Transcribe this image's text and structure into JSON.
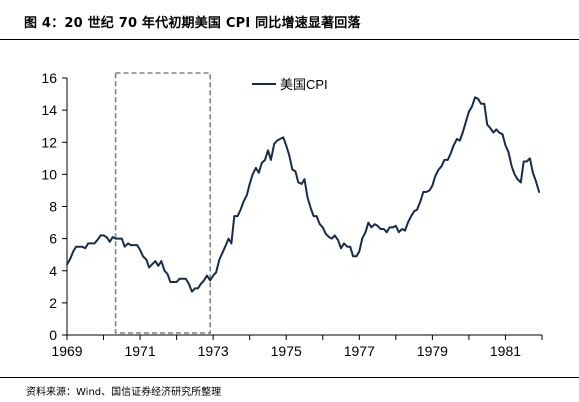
{
  "figure": {
    "title": "图 4：20 世纪 70 年代初期美国 CPI 同比增速显著回落",
    "source": "资料来源：Wind、国信证券经济研究所整理"
  },
  "colors": {
    "series": "#152c4e",
    "axis": "#000000",
    "highlight_box": "#808080"
  },
  "chart_data": {
    "type": "line",
    "title": "",
    "xlabel": "",
    "ylabel": "",
    "xlim": [
      1969.0,
      1982.0
    ],
    "ylim": [
      0,
      16
    ],
    "yticks": [
      0,
      2,
      4,
      6,
      8,
      10,
      12,
      14,
      16
    ],
    "xticks": [
      1969,
      1971,
      1973,
      1975,
      1977,
      1979,
      1981
    ],
    "grid": false,
    "legend": {
      "position": "top-center",
      "entries": [
        "美国CPI"
      ]
    },
    "highlight_region": {
      "x_start": 1970.33,
      "x_end": 1972.92,
      "style": "dashed-box"
    },
    "series": [
      {
        "name": "美国CPI",
        "x": [
          1969.0,
          1969.08,
          1969.17,
          1969.25,
          1969.33,
          1969.42,
          1969.5,
          1969.58,
          1969.67,
          1969.75,
          1969.83,
          1969.92,
          1970.0,
          1970.08,
          1970.17,
          1970.25,
          1970.33,
          1970.42,
          1970.5,
          1970.58,
          1970.67,
          1970.75,
          1970.83,
          1970.92,
          1971.0,
          1971.08,
          1971.17,
          1971.25,
          1971.33,
          1971.42,
          1971.5,
          1971.58,
          1971.67,
          1971.75,
          1971.83,
          1971.92,
          1972.0,
          1972.08,
          1972.17,
          1972.25,
          1972.33,
          1972.42,
          1972.5,
          1972.58,
          1972.67,
          1972.75,
          1972.83,
          1972.92,
          1973.0,
          1973.08,
          1973.17,
          1973.25,
          1973.33,
          1973.42,
          1973.5,
          1973.58,
          1973.67,
          1973.75,
          1973.83,
          1973.92,
          1974.0,
          1974.08,
          1974.17,
          1974.25,
          1974.33,
          1974.42,
          1974.5,
          1974.58,
          1974.67,
          1974.75,
          1974.83,
          1974.92,
          1975.0,
          1975.08,
          1975.17,
          1975.25,
          1975.33,
          1975.42,
          1975.5,
          1975.58,
          1975.67,
          1975.75,
          1975.83,
          1975.92,
          1976.0,
          1976.08,
          1976.17,
          1976.25,
          1976.33,
          1976.42,
          1976.5,
          1976.58,
          1976.67,
          1976.75,
          1976.83,
          1976.92,
          1977.0,
          1977.08,
          1977.17,
          1977.25,
          1977.33,
          1977.42,
          1977.5,
          1977.58,
          1977.67,
          1977.75,
          1977.83,
          1977.92,
          1978.0,
          1978.08,
          1978.17,
          1978.25,
          1978.33,
          1978.42,
          1978.5,
          1978.58,
          1978.67,
          1978.75,
          1978.83,
          1978.92,
          1979.0,
          1979.08,
          1979.17,
          1979.25,
          1979.33,
          1979.42,
          1979.5,
          1979.58,
          1979.67,
          1979.75,
          1979.83,
          1979.92,
          1980.0,
          1980.08,
          1980.17,
          1980.25,
          1980.33,
          1980.42,
          1980.5,
          1980.58,
          1980.67,
          1980.75,
          1980.83,
          1980.92,
          1981.0,
          1981.08,
          1981.17,
          1981.25,
          1981.33,
          1981.42,
          1981.5,
          1981.58,
          1981.67,
          1981.75,
          1981.83,
          1981.92
        ],
        "values": [
          4.4,
          4.7,
          5.2,
          5.5,
          5.5,
          5.5,
          5.4,
          5.7,
          5.7,
          5.7,
          5.9,
          6.2,
          6.2,
          6.1,
          5.8,
          6.1,
          6.0,
          6.0,
          6.0,
          5.5,
          5.7,
          5.6,
          5.6,
          5.6,
          5.3,
          4.9,
          4.7,
          4.2,
          4.4,
          4.6,
          4.3,
          4.6,
          4.0,
          3.8,
          3.3,
          3.3,
          3.3,
          3.5,
          3.5,
          3.5,
          3.2,
          2.7,
          2.9,
          2.9,
          3.2,
          3.4,
          3.7,
          3.4,
          3.7,
          3.9,
          4.7,
          5.1,
          5.5,
          6.0,
          5.7,
          7.4,
          7.4,
          7.8,
          8.3,
          8.7,
          9.4,
          10.0,
          10.4,
          10.1,
          10.7,
          10.9,
          11.5,
          10.9,
          11.9,
          12.1,
          12.2,
          12.3,
          11.8,
          11.2,
          10.3,
          10.2,
          9.5,
          9.4,
          9.7,
          8.6,
          7.9,
          7.4,
          7.4,
          6.9,
          6.7,
          6.3,
          6.1,
          6.0,
          6.2,
          5.9,
          5.4,
          5.7,
          5.5,
          5.5,
          4.9,
          4.9,
          5.2,
          6.0,
          6.4,
          7.0,
          6.7,
          6.9,
          6.8,
          6.6,
          6.6,
          6.4,
          6.7,
          6.7,
          6.8,
          6.4,
          6.6,
          6.5,
          7.0,
          7.4,
          7.7,
          7.8,
          8.3,
          8.9,
          8.9,
          9.0,
          9.3,
          9.9,
          10.3,
          10.5,
          10.9,
          10.9,
          11.3,
          11.8,
          12.2,
          12.1,
          12.6,
          13.3,
          13.9,
          14.2,
          14.8,
          14.7,
          14.4,
          14.4,
          13.1,
          12.9,
          12.6,
          12.8,
          12.6,
          12.5,
          11.8,
          11.4,
          10.5,
          10.0,
          9.7,
          9.5,
          10.8,
          10.8,
          11.0,
          10.1,
          9.6,
          8.9
        ]
      }
    ]
  }
}
